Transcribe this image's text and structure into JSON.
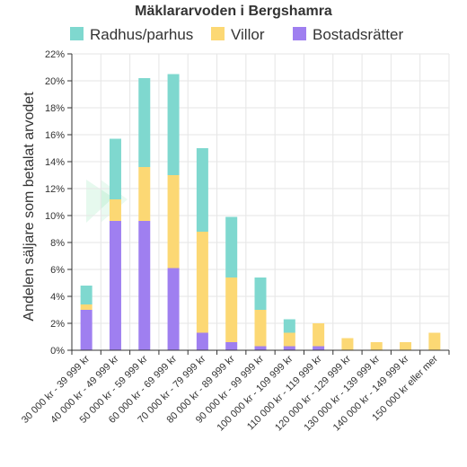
{
  "chart_data": {
    "type": "bar",
    "stacked": true,
    "title": "Mäklararvoden i Bergshamra",
    "xlabel": "",
    "ylabel": "Andelen säljare som betalat arvodet",
    "ylim": [
      0,
      22
    ],
    "yticks": [
      0,
      2,
      4,
      6,
      8,
      10,
      12,
      14,
      16,
      18,
      20,
      22
    ],
    "ytick_suffix": "%",
    "grid": true,
    "legend_position": "top",
    "categories": [
      "30 000 kr - 39 999 kr",
      "40 000 kr - 49 999 kr",
      "50 000 kr - 59 999 kr",
      "60 000 kr - 69 999 kr",
      "70 000 kr - 79 999 kr",
      "80 000 kr - 89 999 kr",
      "90 000 kr - 99 999 kr",
      "100 000 kr - 109 999 kr",
      "110 000 kr - 119 999 kr",
      "120 000 kr - 129 999 kr",
      "130 000 kr - 139 999 kr",
      "140 000 kr - 149 999 kr",
      "150 000 kr eller mer"
    ],
    "series": [
      {
        "name": "Bostadsrätter",
        "color": "#9f7ff0",
        "values": [
          3.0,
          9.6,
          9.6,
          6.1,
          1.3,
          0.6,
          0.3,
          0.3,
          0.3,
          0,
          0,
          0,
          0
        ]
      },
      {
        "name": "Villor",
        "color": "#fcd874",
        "values": [
          0.4,
          1.6,
          4.0,
          6.9,
          7.5,
          4.8,
          2.7,
          1.0,
          1.7,
          0.9,
          0.6,
          0.6,
          1.3
        ]
      },
      {
        "name": "Radhus/parhus",
        "color": "#7fd8cf",
        "values": [
          1.4,
          4.5,
          6.6,
          7.5,
          6.2,
          4.5,
          2.4,
          1.0,
          0,
          0,
          0,
          0,
          0
        ]
      }
    ],
    "legend_order": [
      "Radhus/parhus",
      "Villor",
      "Bostadsrätter"
    ]
  }
}
